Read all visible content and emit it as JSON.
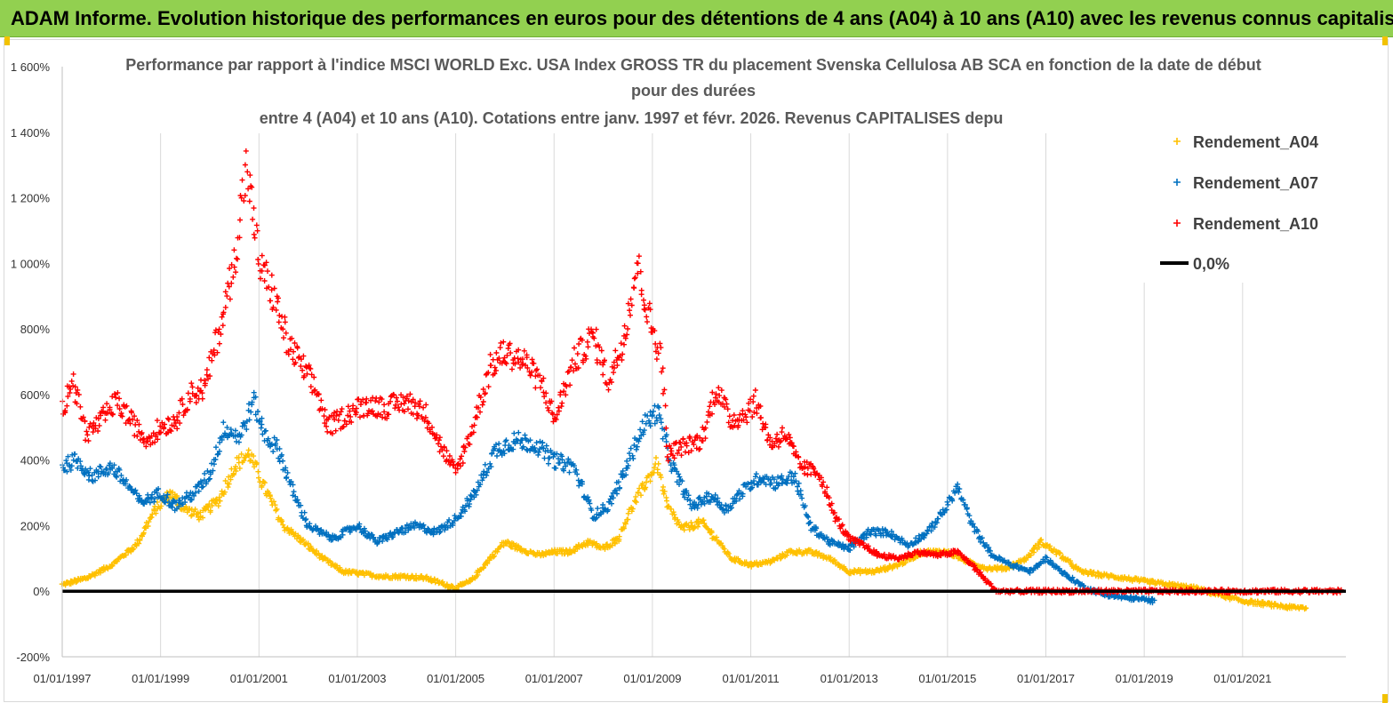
{
  "banner": {
    "title": "ADAM Informe. Evolution historique des performances en euros pour des détentions de 4 ans (A04) à 10 ans (A10) avec les revenus connus capitalisés"
  },
  "colors": {
    "banner_bg": "#92d050",
    "a04": "#ffc000",
    "a07": "#0070c0",
    "a10": "#ff0000",
    "zero_line": "#000000"
  },
  "chart_data": {
    "type": "scatter",
    "title_lines": [
      "Performance par rapport à l'indice MSCI WORLD Exc. USA Index GROSS TR  du placement Svenska Cellulosa AB SCA en fonction de la date de début",
      "pour des durées",
      "entre 4 (A04) et 10 ans (A10). Cotations entre janv. 1997 et févr. 2026. Revenus CAPITALISES depu"
    ],
    "xlabel": "",
    "ylabel": "",
    "x_range": [
      1997.0,
      2023.1
    ],
    "ylim": [
      -200,
      1600
    ],
    "y_ticks": [
      -200,
      0,
      200,
      400,
      600,
      800,
      1000,
      1200,
      1400,
      1600
    ],
    "y_tick_labels": [
      "-200%",
      "0%",
      "200%",
      "400%",
      "600%",
      "800%",
      "1 000%",
      "1 200%",
      "1 400%",
      "1 600%"
    ],
    "x_ticks": [
      1997,
      1999,
      2001,
      2003,
      2005,
      2007,
      2009,
      2011,
      2013,
      2015,
      2017,
      2019,
      2021
    ],
    "x_tick_labels": [
      "01/01/1997",
      "01/01/1999",
      "01/01/2001",
      "01/01/2003",
      "01/01/2005",
      "01/01/2007",
      "01/01/2009",
      "01/01/2011",
      "01/01/2013",
      "01/01/2015",
      "01/01/2017",
      "01/01/2019",
      "01/01/2021"
    ],
    "legend_position": "top-right",
    "series": [
      {
        "name": "Rendement_A04",
        "color": "#ffc000",
        "marker": "plus",
        "keyframes": [
          [
            1997.0,
            20
          ],
          [
            1997.5,
            40
          ],
          [
            1998.0,
            80
          ],
          [
            1998.5,
            140
          ],
          [
            1998.9,
            250
          ],
          [
            1999.2,
            300
          ],
          [
            1999.5,
            250
          ],
          [
            1999.8,
            230
          ],
          [
            2000.2,
            280
          ],
          [
            2000.5,
            380
          ],
          [
            2000.8,
            420
          ],
          [
            2001.1,
            320
          ],
          [
            2001.5,
            200
          ],
          [
            2001.9,
            150
          ],
          [
            2002.3,
            100
          ],
          [
            2002.7,
            60
          ],
          [
            2003.0,
            55
          ],
          [
            2003.5,
            45
          ],
          [
            2004.0,
            45
          ],
          [
            2004.4,
            40
          ],
          [
            2004.8,
            20
          ],
          [
            2005.0,
            10
          ],
          [
            2005.3,
            30
          ],
          [
            2005.7,
            100
          ],
          [
            2006.0,
            150
          ],
          [
            2006.3,
            130
          ],
          [
            2006.7,
            110
          ],
          [
            2007.0,
            120
          ],
          [
            2007.3,
            120
          ],
          [
            2007.7,
            150
          ],
          [
            2008.0,
            130
          ],
          [
            2008.3,
            160
          ],
          [
            2008.6,
            260
          ],
          [
            2008.9,
            340
          ],
          [
            2009.1,
            390
          ],
          [
            2009.3,
            260
          ],
          [
            2009.6,
            190
          ],
          [
            2010.0,
            210
          ],
          [
            2010.3,
            160
          ],
          [
            2010.6,
            100
          ],
          [
            2011.0,
            80
          ],
          [
            2011.4,
            90
          ],
          [
            2011.8,
            120
          ],
          [
            2012.2,
            120
          ],
          [
            2012.6,
            100
          ],
          [
            2013.0,
            60
          ],
          [
            2013.5,
            60
          ],
          [
            2014.0,
            80
          ],
          [
            2014.5,
            120
          ],
          [
            2015.0,
            120
          ],
          [
            2015.4,
            90
          ],
          [
            2015.8,
            70
          ],
          [
            2016.2,
            70
          ],
          [
            2016.6,
            100
          ],
          [
            2016.9,
            150
          ],
          [
            2017.3,
            110
          ],
          [
            2017.7,
            60
          ],
          [
            2018.1,
            50
          ],
          [
            2018.6,
            40
          ],
          [
            2019.0,
            30
          ],
          [
            2019.5,
            20
          ],
          [
            2020.0,
            10
          ],
          [
            2020.5,
            -10
          ],
          [
            2021.0,
            -30
          ],
          [
            2021.5,
            -40
          ],
          [
            2022.0,
            -50
          ],
          [
            2022.3,
            -50
          ]
        ]
      },
      {
        "name": "Rendement_A07",
        "color": "#0070c0",
        "marker": "plus",
        "keyframes": [
          [
            1997.0,
            380
          ],
          [
            1997.3,
            400
          ],
          [
            1997.6,
            350
          ],
          [
            1998.0,
            380
          ],
          [
            1998.3,
            330
          ],
          [
            1998.6,
            270
          ],
          [
            1999.0,
            300
          ],
          [
            1999.3,
            260
          ],
          [
            1999.7,
            300
          ],
          [
            2000.0,
            360
          ],
          [
            2000.3,
            500
          ],
          [
            2000.6,
            470
          ],
          [
            2000.9,
            580
          ],
          [
            2001.1,
            480
          ],
          [
            2001.4,
            430
          ],
          [
            2001.7,
            300
          ],
          [
            2002.0,
            200
          ],
          [
            2002.5,
            160
          ],
          [
            2003.0,
            200
          ],
          [
            2003.4,
            150
          ],
          [
            2003.8,
            180
          ],
          [
            2004.2,
            200
          ],
          [
            2004.6,
            180
          ],
          [
            2005.0,
            220
          ],
          [
            2005.4,
            300
          ],
          [
            2005.8,
            430
          ],
          [
            2006.2,
            460
          ],
          [
            2006.6,
            450
          ],
          [
            2007.0,
            400
          ],
          [
            2007.4,
            380
          ],
          [
            2007.8,
            230
          ],
          [
            2008.1,
            260
          ],
          [
            2008.4,
            350
          ],
          [
            2008.8,
            500
          ],
          [
            2009.1,
            550
          ],
          [
            2009.4,
            380
          ],
          [
            2009.8,
            260
          ],
          [
            2010.2,
            290
          ],
          [
            2010.5,
            250
          ],
          [
            2010.8,
            300
          ],
          [
            2011.2,
            350
          ],
          [
            2011.5,
            330
          ],
          [
            2011.9,
            350
          ],
          [
            2012.2,
            200
          ],
          [
            2012.6,
            150
          ],
          [
            2013.0,
            130
          ],
          [
            2013.4,
            180
          ],
          [
            2013.8,
            180
          ],
          [
            2014.2,
            140
          ],
          [
            2014.6,
            180
          ],
          [
            2015.0,
            260
          ],
          [
            2015.2,
            320
          ],
          [
            2015.5,
            200
          ],
          [
            2015.9,
            110
          ],
          [
            2016.3,
            80
          ],
          [
            2016.7,
            60
          ],
          [
            2017.0,
            100
          ],
          [
            2017.4,
            50
          ],
          [
            2017.8,
            10
          ],
          [
            2018.2,
            -10
          ],
          [
            2018.6,
            -20
          ],
          [
            2019.0,
            -25
          ],
          [
            2019.2,
            -30
          ]
        ]
      },
      {
        "name": "Rendement_A10",
        "color": "#ff0000",
        "marker": "plus",
        "keyframes": [
          [
            1997.0,
            550
          ],
          [
            1997.2,
            650
          ],
          [
            1997.5,
            480
          ],
          [
            1997.8,
            520
          ],
          [
            1998.1,
            580
          ],
          [
            1998.4,
            520
          ],
          [
            1998.7,
            460
          ],
          [
            1999.0,
            500
          ],
          [
            1999.3,
            520
          ],
          [
            1999.6,
            600
          ],
          [
            1999.9,
            620
          ],
          [
            2000.2,
            800
          ],
          [
            2000.5,
            1000
          ],
          [
            2000.75,
            1300
          ],
          [
            2001.0,
            1000
          ],
          [
            2001.3,
            900
          ],
          [
            2001.6,
            750
          ],
          [
            2001.9,
            680
          ],
          [
            2002.2,
            600
          ],
          [
            2002.4,
            500
          ],
          [
            2002.8,
            540
          ],
          [
            2003.2,
            570
          ],
          [
            2003.6,
            560
          ],
          [
            2004.0,
            580
          ],
          [
            2004.4,
            540
          ],
          [
            2004.7,
            440
          ],
          [
            2005.0,
            360
          ],
          [
            2005.3,
            480
          ],
          [
            2005.7,
            680
          ],
          [
            2006.0,
            730
          ],
          [
            2006.4,
            700
          ],
          [
            2006.8,
            620
          ],
          [
            2007.0,
            520
          ],
          [
            2007.4,
            700
          ],
          [
            2007.8,
            780
          ],
          [
            2008.1,
            640
          ],
          [
            2008.4,
            760
          ],
          [
            2008.7,
            1000
          ],
          [
            2008.9,
            850
          ],
          [
            2009.2,
            700
          ],
          [
            2009.3,
            420
          ],
          [
            2009.6,
            440
          ],
          [
            2010.0,
            460
          ],
          [
            2010.3,
            620
          ],
          [
            2010.6,
            520
          ],
          [
            2010.9,
            540
          ],
          [
            2011.1,
            580
          ],
          [
            2011.4,
            450
          ],
          [
            2011.7,
            480
          ],
          [
            2012.0,
            380
          ],
          [
            2012.4,
            360
          ],
          [
            2012.7,
            230
          ],
          [
            2013.0,
            160
          ],
          [
            2013.3,
            140
          ],
          [
            2013.6,
            110
          ],
          [
            2014.0,
            100
          ],
          [
            2014.4,
            120
          ],
          [
            2014.8,
            110
          ],
          [
            2015.2,
            120
          ],
          [
            2015.5,
            80
          ],
          [
            2015.8,
            30
          ],
          [
            2016.0,
            0
          ],
          [
            2023.0,
            0
          ]
        ]
      }
    ],
    "reference_line": {
      "name": "0,0%",
      "y": 0,
      "color": "#000000"
    }
  }
}
